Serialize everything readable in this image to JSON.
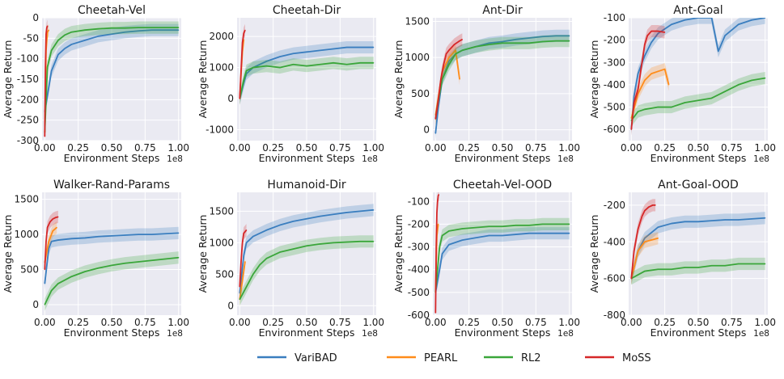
{
  "colors": {
    "VariBAD": "#3a7ebf",
    "PEARL": "#ff8c1a",
    "RL2": "#3aa63a",
    "MoSS": "#d62728",
    "plot_bg": "#eaeaf2",
    "grid": "#ffffff"
  },
  "legend": {
    "entries": [
      "VariBAD",
      "PEARL",
      "RL2",
      "MoSS"
    ]
  },
  "chart_data": [
    {
      "type": "line",
      "title": "Cheetah-Vel",
      "xlabel": "Environment Steps",
      "ylabel": "Average Return",
      "x_multiplier_label": "1e8",
      "xlim": [
        -0.02,
        1.02
      ],
      "ylim": [
        -300,
        0
      ],
      "xticks": [
        0.0,
        0.25,
        0.5,
        0.75,
        1.0
      ],
      "xtick_labels": [
        "0.00",
        "0.25",
        "0.50",
        "0.75",
        "1.00"
      ],
      "yticks": [
        -300,
        -250,
        -200,
        -150,
        -100,
        -50,
        0
      ],
      "series": [
        {
          "name": "VariBAD",
          "x": [
            0.0,
            0.05,
            0.1,
            0.15,
            0.2,
            0.3,
            0.4,
            0.5,
            0.6,
            0.7,
            0.8,
            0.9,
            1.0
          ],
          "y": [
            -230,
            -130,
            -90,
            -75,
            -65,
            -55,
            -45,
            -40,
            -35,
            -32,
            -30,
            -30,
            -30
          ]
        },
        {
          "name": "PEARL",
          "x": [
            0.0,
            0.01,
            0.02,
            0.03
          ],
          "y": [
            -280,
            -80,
            -35,
            -30
          ]
        },
        {
          "name": "RL2",
          "x": [
            0.0,
            0.02,
            0.05,
            0.1,
            0.15,
            0.2,
            0.3,
            0.4,
            0.5,
            0.6,
            0.7,
            0.8,
            0.9,
            1.0
          ],
          "y": [
            -280,
            -120,
            -80,
            -55,
            -42,
            -35,
            -30,
            -27,
            -25,
            -25,
            -24,
            -24,
            -24,
            -24
          ]
        },
        {
          "name": "MoSS",
          "x": [
            0.0,
            0.005,
            0.01,
            0.015,
            0.02
          ],
          "y": [
            -290,
            -120,
            -40,
            -25,
            -20
          ]
        }
      ]
    },
    {
      "type": "line",
      "title": "Cheetah-Dir",
      "xlabel": "Environment Steps",
      "ylabel": "Average Return",
      "x_multiplier_label": "1e8",
      "xlim": [
        -0.02,
        1.02
      ],
      "ylim": [
        -1350,
        2600
      ],
      "xticks": [
        0.0,
        0.25,
        0.5,
        0.75,
        1.0
      ],
      "xtick_labels": [
        "0.00",
        "0.25",
        "0.50",
        "0.75",
        "1.00"
      ],
      "yticks": [
        -1000,
        0,
        1000,
        2000
      ],
      "series": [
        {
          "name": "VariBAD",
          "x": [
            0.0,
            0.03,
            0.05,
            0.1,
            0.2,
            0.3,
            0.4,
            0.5,
            0.6,
            0.7,
            0.8,
            0.9,
            1.0
          ],
          "y": [
            0,
            500,
            800,
            1000,
            1200,
            1350,
            1450,
            1500,
            1550,
            1600,
            1650,
            1650,
            1650
          ]
        },
        {
          "name": "PEARL",
          "x": [
            0.0,
            0.01,
            0.02,
            0.03
          ],
          "y": [
            0,
            800,
            1500,
            1900
          ]
        },
        {
          "name": "RL2",
          "x": [
            0.0,
            0.03,
            0.05,
            0.1,
            0.2,
            0.3,
            0.4,
            0.5,
            0.6,
            0.7,
            0.8,
            0.9,
            1.0
          ],
          "y": [
            0,
            600,
            900,
            1000,
            1050,
            1000,
            1100,
            1050,
            1100,
            1150,
            1100,
            1150,
            1150
          ]
        },
        {
          "name": "MoSS",
          "x": [
            0.0,
            0.01,
            0.02,
            0.03,
            0.04
          ],
          "y": [
            0,
            900,
            1800,
            2100,
            2200
          ]
        }
      ]
    },
    {
      "type": "line",
      "title": "Ant-Dir",
      "xlabel": "Environment Steps",
      "ylabel": "Average Return",
      "x_multiplier_label": "1e8",
      "xlim": [
        -0.02,
        1.02
      ],
      "ylim": [
        -150,
        1550
      ],
      "xticks": [
        0.0,
        0.25,
        0.5,
        0.75,
        1.0
      ],
      "xtick_labels": [
        "0.00",
        "0.25",
        "0.50",
        "0.75",
        "1.00"
      ],
      "yticks": [
        0,
        500,
        1000,
        1500
      ],
      "series": [
        {
          "name": "VariBAD",
          "x": [
            0.0,
            0.02,
            0.05,
            0.1,
            0.15,
            0.2,
            0.3,
            0.4,
            0.5,
            0.6,
            0.7,
            0.8,
            0.9,
            1.0
          ],
          "y": [
            -50,
            300,
            700,
            950,
            1050,
            1100,
            1150,
            1200,
            1220,
            1250,
            1270,
            1290,
            1300,
            1300
          ]
        },
        {
          "name": "PEARL",
          "x": [
            0.0,
            0.05,
            0.1,
            0.15,
            0.18
          ],
          "y": [
            200,
            800,
            1000,
            1100,
            700
          ]
        },
        {
          "name": "RL2",
          "x": [
            0.0,
            0.02,
            0.05,
            0.1,
            0.15,
            0.2,
            0.3,
            0.4,
            0.5,
            0.6,
            0.7,
            0.8,
            0.9,
            1.0
          ],
          "y": [
            150,
            400,
            700,
            900,
            1050,
            1100,
            1150,
            1180,
            1200,
            1200,
            1200,
            1220,
            1230,
            1230
          ]
        },
        {
          "name": "MoSS",
          "x": [
            0.0,
            0.02,
            0.04,
            0.06,
            0.08,
            0.1,
            0.14,
            0.18,
            0.2
          ],
          "y": [
            150,
            400,
            700,
            900,
            1050,
            1100,
            1180,
            1230,
            1250
          ]
        }
      ]
    },
    {
      "type": "line",
      "title": "Ant-Goal",
      "xlabel": "Environment Steps",
      "ylabel": "Average Return",
      "x_multiplier_label": "1e8",
      "xlim": [
        -0.02,
        1.02
      ],
      "ylim": [
        -650,
        -100
      ],
      "xticks": [
        0.0,
        0.25,
        0.5,
        0.75,
        1.0
      ],
      "xtick_labels": [
        "0.00",
        "0.25",
        "0.50",
        "0.75",
        "1.00"
      ],
      "yticks": [
        -600,
        -500,
        -400,
        -300,
        -200,
        -100
      ],
      "series": [
        {
          "name": "VariBAD",
          "x": [
            0.0,
            0.02,
            0.05,
            0.1,
            0.15,
            0.2,
            0.3,
            0.4,
            0.5,
            0.6,
            0.65,
            0.7,
            0.8,
            0.9,
            1.0
          ],
          "y": [
            -600,
            -450,
            -350,
            -270,
            -210,
            -170,
            -130,
            -110,
            -100,
            -100,
            -250,
            -180,
            -130,
            -110,
            -100
          ]
        },
        {
          "name": "PEARL",
          "x": [
            0.0,
            0.05,
            0.1,
            0.15,
            0.2,
            0.25,
            0.28
          ],
          "y": [
            -550,
            -440,
            -380,
            -350,
            -340,
            -330,
            -400
          ]
        },
        {
          "name": "RL2",
          "x": [
            0.0,
            0.05,
            0.1,
            0.2,
            0.3,
            0.4,
            0.5,
            0.6,
            0.7,
            0.8,
            0.9,
            1.0
          ],
          "y": [
            -560,
            -520,
            -510,
            -500,
            -500,
            -480,
            -470,
            -460,
            -430,
            -400,
            -380,
            -370
          ]
        },
        {
          "name": "MoSS",
          "x": [
            0.0,
            0.02,
            0.05,
            0.08,
            0.1,
            0.12,
            0.15,
            0.2,
            0.25
          ],
          "y": [
            -600,
            -480,
            -420,
            -300,
            -220,
            -180,
            -160,
            -160,
            -165
          ]
        }
      ]
    },
    {
      "type": "line",
      "title": "Walker-Rand-Params",
      "xlabel": "Environment Steps",
      "ylabel": "Average Return",
      "x_multiplier_label": "1e8",
      "xlim": [
        -0.02,
        1.02
      ],
      "ylim": [
        -150,
        1600
      ],
      "xticks": [
        0.0,
        0.25,
        0.5,
        0.75,
        1.0
      ],
      "xtick_labels": [
        "0.00",
        "0.25",
        "0.50",
        "0.75",
        "1.00"
      ],
      "yticks": [
        0,
        500,
        1000,
        1500
      ],
      "series": [
        {
          "name": "VariBAD",
          "x": [
            0.0,
            0.03,
            0.05,
            0.1,
            0.2,
            0.3,
            0.4,
            0.5,
            0.6,
            0.7,
            0.8,
            0.9,
            1.0
          ],
          "y": [
            300,
            800,
            900,
            920,
            940,
            950,
            970,
            980,
            990,
            1000,
            1000,
            1010,
            1020
          ]
        },
        {
          "name": "PEARL",
          "x": [
            0.0,
            0.03,
            0.06,
            0.09
          ],
          "y": [
            600,
            900,
            1050,
            1100
          ]
        },
        {
          "name": "RL2",
          "x": [
            0.0,
            0.05,
            0.1,
            0.2,
            0.3,
            0.4,
            0.5,
            0.6,
            0.7,
            0.8,
            0.9,
            1.0
          ],
          "y": [
            0,
            200,
            300,
            400,
            470,
            520,
            560,
            590,
            610,
            630,
            650,
            670
          ]
        },
        {
          "name": "MoSS",
          "x": [
            0.0,
            0.01,
            0.02,
            0.04,
            0.06,
            0.08,
            0.1
          ],
          "y": [
            500,
            900,
            1100,
            1180,
            1220,
            1240,
            1250
          ]
        }
      ]
    },
    {
      "type": "line",
      "title": "Humanoid-Dir",
      "xlabel": "Environment Steps",
      "ylabel": "Average Return",
      "x_multiplier_label": "1e8",
      "xlim": [
        -0.02,
        1.02
      ],
      "ylim": [
        -150,
        1800
      ],
      "xticks": [
        0.0,
        0.25,
        0.5,
        0.75,
        1.0
      ],
      "xtick_labels": [
        "0.00",
        "0.25",
        "0.50",
        "0.75",
        "1.00"
      ],
      "yticks": [
        0,
        500,
        1000,
        1500
      ],
      "series": [
        {
          "name": "VariBAD",
          "x": [
            0.0,
            0.03,
            0.05,
            0.1,
            0.2,
            0.3,
            0.4,
            0.5,
            0.6,
            0.7,
            0.8,
            0.9,
            1.0
          ],
          "y": [
            200,
            800,
            1000,
            1100,
            1200,
            1280,
            1340,
            1380,
            1420,
            1450,
            1480,
            1500,
            1520
          ]
        },
        {
          "name": "PEARL",
          "x": [
            0.0,
            0.02,
            0.04
          ],
          "y": [
            100,
            400,
            700
          ]
        },
        {
          "name": "RL2",
          "x": [
            0.0,
            0.05,
            0.1,
            0.15,
            0.2,
            0.3,
            0.4,
            0.5,
            0.6,
            0.7,
            0.8,
            0.9,
            1.0
          ],
          "y": [
            100,
            300,
            500,
            650,
            750,
            850,
            900,
            950,
            980,
            1000,
            1010,
            1020,
            1020
          ]
        },
        {
          "name": "MoSS",
          "x": [
            0.0,
            0.01,
            0.02,
            0.03,
            0.05
          ],
          "y": [
            300,
            700,
            1000,
            1150,
            1200
          ]
        }
      ]
    },
    {
      "type": "line",
      "title": "Cheetah-Vel-OOD",
      "xlabel": "Environment Steps",
      "ylabel": "Average Return",
      "x_multiplier_label": "1e8",
      "xlim": [
        -0.02,
        1.02
      ],
      "ylim": [
        -600,
        -60
      ],
      "xticks": [
        0.0,
        0.25,
        0.5,
        0.75,
        1.0
      ],
      "xtick_labels": [
        "0.00",
        "0.25",
        "0.50",
        "0.75",
        "1.00"
      ],
      "yticks": [
        -600,
        -500,
        -400,
        -300,
        -200,
        -100
      ],
      "series": [
        {
          "name": "VariBAD",
          "x": [
            0.0,
            0.03,
            0.05,
            0.1,
            0.2,
            0.3,
            0.4,
            0.5,
            0.6,
            0.7,
            0.8,
            0.9,
            1.0
          ],
          "y": [
            -500,
            -400,
            -330,
            -290,
            -270,
            -260,
            -250,
            -250,
            -245,
            -240,
            -240,
            -240,
            -240
          ]
        },
        {
          "name": "PEARL",
          "x": [
            0.0,
            0.01,
            0.02
          ],
          "y": [
            -500,
            -250,
            -200
          ]
        },
        {
          "name": "RL2",
          "x": [
            0.0,
            0.03,
            0.05,
            0.1,
            0.2,
            0.3,
            0.4,
            0.5,
            0.6,
            0.7,
            0.8,
            0.9,
            1.0
          ],
          "y": [
            -500,
            -300,
            -250,
            -230,
            -220,
            -215,
            -210,
            -210,
            -205,
            -205,
            -200,
            -200,
            -200
          ]
        },
        {
          "name": "MoSS",
          "x": [
            0.0,
            0.005,
            0.01,
            0.015,
            0.02,
            0.025
          ],
          "y": [
            -590,
            -300,
            -150,
            -100,
            -75,
            -70
          ]
        }
      ]
    },
    {
      "type": "line",
      "title": "Ant-Goal-OOD",
      "xlabel": "Environment Steps",
      "ylabel": "Average Return",
      "x_multiplier_label": "1e8",
      "xlim": [
        -0.02,
        1.02
      ],
      "ylim": [
        -800,
        -130
      ],
      "xticks": [
        0.0,
        0.25,
        0.5,
        0.75,
        1.0
      ],
      "xtick_labels": [
        "0.00",
        "0.25",
        "0.50",
        "0.75",
        "1.00"
      ],
      "yticks": [
        -800,
        -600,
        -400,
        -200
      ],
      "series": [
        {
          "name": "VariBAD",
          "x": [
            0.0,
            0.05,
            0.1,
            0.2,
            0.3,
            0.4,
            0.5,
            0.6,
            0.7,
            0.8,
            0.9,
            1.0
          ],
          "y": [
            -600,
            -450,
            -380,
            -320,
            -300,
            -290,
            -290,
            -285,
            -280,
            -280,
            -275,
            -270
          ]
        },
        {
          "name": "PEARL",
          "x": [
            0.0,
            0.05,
            0.1,
            0.15,
            0.2
          ],
          "y": [
            -600,
            -450,
            -400,
            -390,
            -380
          ]
        },
        {
          "name": "RL2",
          "x": [
            0.0,
            0.05,
            0.1,
            0.2,
            0.3,
            0.4,
            0.5,
            0.6,
            0.7,
            0.8,
            0.9,
            1.0
          ],
          "y": [
            -600,
            -580,
            -560,
            -550,
            -550,
            -540,
            -540,
            -530,
            -530,
            -520,
            -520,
            -520
          ]
        },
        {
          "name": "MoSS",
          "x": [
            0.0,
            0.02,
            0.05,
            0.08,
            0.1,
            0.13,
            0.16,
            0.18
          ],
          "y": [
            -600,
            -450,
            -330,
            -260,
            -230,
            -210,
            -200,
            -200
          ]
        }
      ]
    }
  ]
}
